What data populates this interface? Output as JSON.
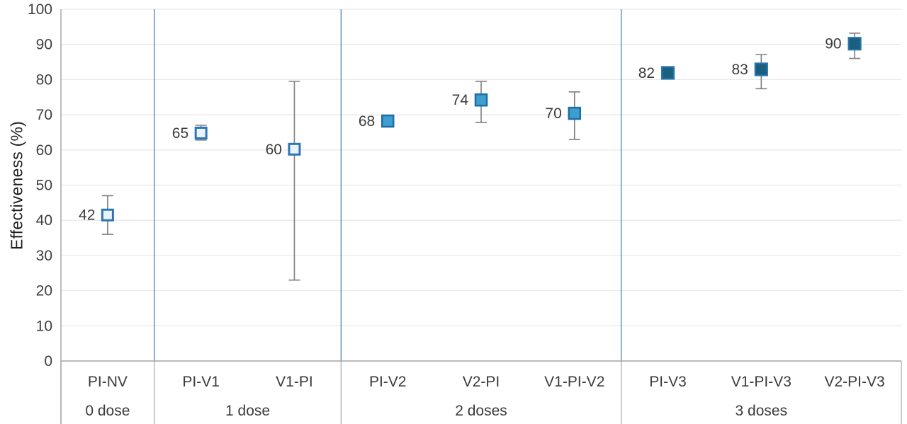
{
  "chart_data": {
    "type": "scatter",
    "title": "",
    "ylabel": "Effectiveness (%)",
    "xlabel": "",
    "ylim": [
      0,
      100
    ],
    "ytick_step": 10,
    "ytick_labels": [
      "0",
      "10",
      "20",
      "30",
      "40",
      "50",
      "60",
      "70",
      "80",
      "90",
      "100"
    ],
    "grid": true,
    "legend": "none",
    "notes": "point estimates with 95% CI error bars; groups separated by vertical lines",
    "groups": [
      {
        "label": "0 dose",
        "marker_style": "open",
        "points": [
          {
            "category": "PI-NV",
            "label": "42",
            "value": 42,
            "marker_value": 41.5,
            "ci_low": 36,
            "ci_high": 47
          }
        ]
      },
      {
        "label": "1 dose",
        "marker_style": "open",
        "points": [
          {
            "category": "PI-V1",
            "label": "65",
            "value": 65,
            "marker_value": 64.8,
            "ci_low": 62.8,
            "ci_high": 67
          },
          {
            "category": "V1-PI",
            "label": "60",
            "value": 60,
            "marker_value": 60.2,
            "ci_low": 23,
            "ci_high": 79.5
          }
        ]
      },
      {
        "label": "2 doses",
        "marker_style": "medium",
        "points": [
          {
            "category": "PI-V2",
            "label": "68",
            "value": 68,
            "marker_value": 68.2,
            "ci_low": null,
            "ci_high": null
          },
          {
            "category": "V2-PI",
            "label": "74",
            "value": 74,
            "marker_value": 74.2,
            "ci_low": 67.8,
            "ci_high": 79.5
          },
          {
            "category": "V1-PI-V2",
            "label": "70",
            "value": 70,
            "marker_value": 70.4,
            "ci_low": 63,
            "ci_high": 76.5
          }
        ]
      },
      {
        "label": "3 doses",
        "marker_style": "dark",
        "points": [
          {
            "category": "PI-V3",
            "label": "82",
            "value": 82,
            "marker_value": 81.9,
            "ci_low": null,
            "ci_high": null
          },
          {
            "category": "V1-PI-V3",
            "label": "83",
            "value": 83,
            "marker_value": 82.9,
            "ci_low": 77.4,
            "ci_high": 87.1
          },
          {
            "category": "V2-PI-V3",
            "label": "90",
            "value": 90,
            "marker_value": 90.2,
            "ci_low": 86,
            "ci_high": 93.2
          }
        ]
      }
    ]
  },
  "colors": {
    "background": "#ffffff",
    "gridline": "#e9e9e9",
    "axis_line": "#a3a3a3",
    "table_line": "#adadad",
    "group_separator": "#558ebb",
    "error_bar": "#7f7f7f",
    "tick_text": "#3f3f3f",
    "label_text": "#3b3b3b",
    "marker_open_fill": "#ecf4fb",
    "marker_open_stroke": "#2e75b6",
    "marker_medium_fill": "#3e9ecf",
    "marker_medium_stroke": "#1c6ea4",
    "marker_dark_fill": "#1a5f82",
    "marker_dark_stroke": "#2876a8"
  }
}
